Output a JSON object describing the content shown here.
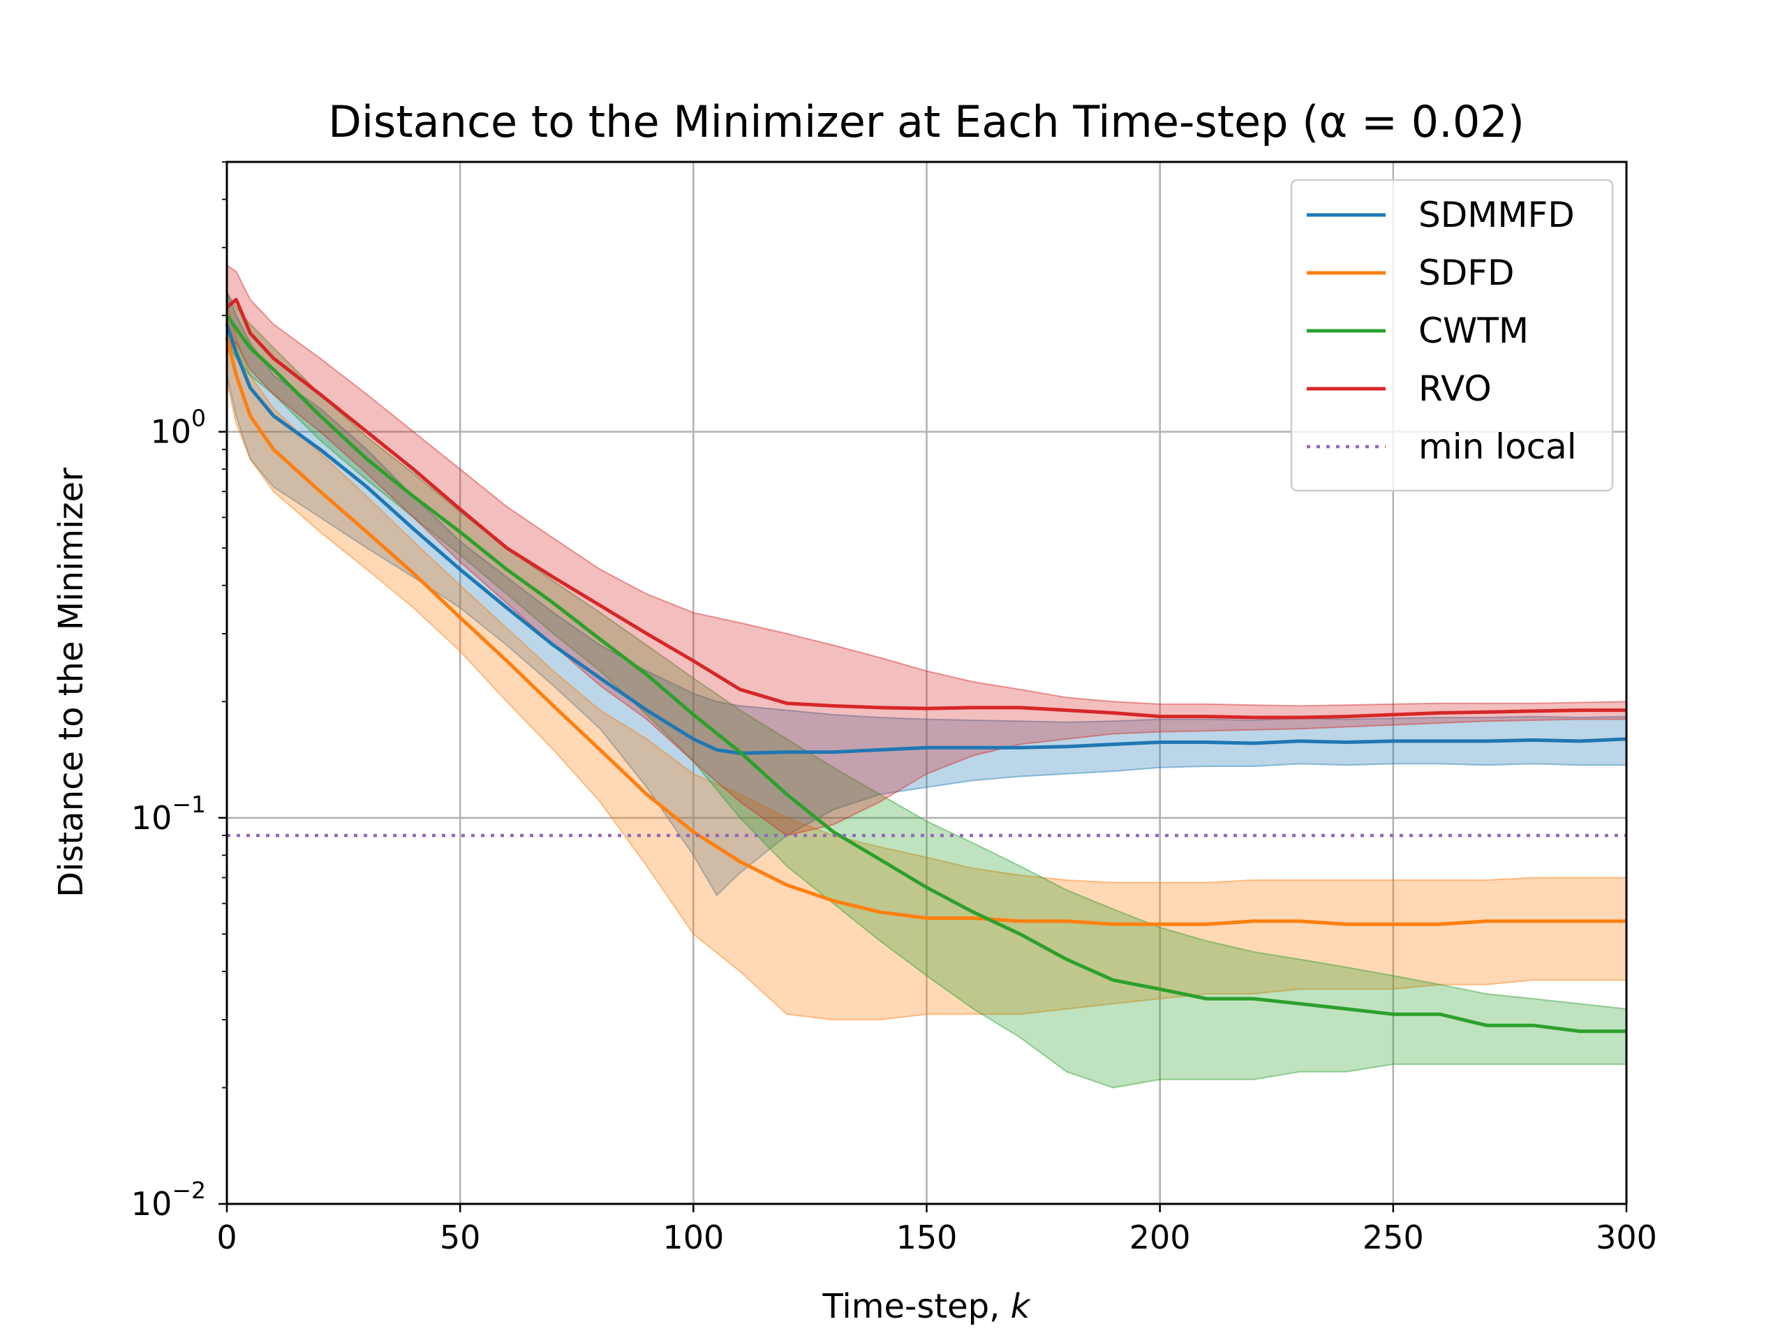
{
  "chart_data": {
    "type": "line",
    "title": "Distance to the Minimizer at Each Time-step (α = 0.02)",
    "xlabel": "Time-step, k",
    "ylabel": "Distance to the Minimizer",
    "xlim": [
      0,
      300
    ],
    "ylim": [
      0.01,
      5
    ],
    "yscale": "log",
    "grid": true,
    "legend_position": "top-right",
    "x_ticks": [
      0,
      50,
      100,
      150,
      200,
      250,
      300
    ],
    "x_tick_labels": [
      "0",
      "50",
      "100",
      "150",
      "200",
      "250",
      "300"
    ],
    "y_ticks": [
      {
        "value": 1,
        "base": "10",
        "exp": "0"
      },
      {
        "value": 0.1,
        "base": "10",
        "exp": "−1"
      },
      {
        "value": 0.01,
        "base": "10",
        "exp": "−2"
      }
    ],
    "series": [
      {
        "name": "SDMMFD",
        "color": "#1f77b4",
        "x": [
          0,
          2,
          5,
          10,
          20,
          30,
          40,
          50,
          60,
          70,
          80,
          90,
          100,
          105,
          110,
          120,
          130,
          140,
          150,
          160,
          170,
          180,
          190,
          200,
          210,
          220,
          230,
          240,
          250,
          260,
          270,
          280,
          290,
          300
        ],
        "y": [
          1.9,
          1.6,
          1.3,
          1.1,
          0.9,
          0.72,
          0.56,
          0.44,
          0.35,
          0.28,
          0.23,
          0.19,
          0.16,
          0.15,
          0.147,
          0.148,
          0.148,
          0.15,
          0.152,
          0.152,
          0.152,
          0.153,
          0.155,
          0.157,
          0.157,
          0.156,
          0.158,
          0.157,
          0.158,
          0.158,
          0.158,
          0.159,
          0.158,
          0.16
        ],
        "lower": [
          1.4,
          1.1,
          0.85,
          0.72,
          0.6,
          0.5,
          0.42,
          0.35,
          0.28,
          0.22,
          0.17,
          0.12,
          0.08,
          0.063,
          0.072,
          0.09,
          0.105,
          0.115,
          0.12,
          0.125,
          0.128,
          0.13,
          0.132,
          0.135,
          0.136,
          0.136,
          0.138,
          0.137,
          0.138,
          0.138,
          0.137,
          0.138,
          0.137,
          0.137
        ],
        "upper": [
          2.3,
          2.0,
          1.7,
          1.4,
          1.15,
          0.9,
          0.68,
          0.52,
          0.42,
          0.34,
          0.28,
          0.24,
          0.21,
          0.2,
          0.195,
          0.19,
          0.185,
          0.182,
          0.18,
          0.179,
          0.178,
          0.177,
          0.178,
          0.18,
          0.18,
          0.179,
          0.181,
          0.18,
          0.181,
          0.182,
          0.182,
          0.183,
          0.182,
          0.183
        ]
      },
      {
        "name": "SDFD",
        "color": "#ff7f0e",
        "x": [
          0,
          2,
          5,
          10,
          20,
          30,
          40,
          50,
          60,
          70,
          80,
          90,
          100,
          110,
          120,
          130,
          140,
          150,
          160,
          170,
          180,
          190,
          200,
          210,
          220,
          230,
          240,
          250,
          260,
          270,
          280,
          290,
          300
        ],
        "y": [
          1.75,
          1.4,
          1.1,
          0.9,
          0.7,
          0.55,
          0.43,
          0.33,
          0.255,
          0.195,
          0.15,
          0.115,
          0.092,
          0.077,
          0.067,
          0.061,
          0.057,
          0.055,
          0.055,
          0.054,
          0.054,
          0.053,
          0.053,
          0.053,
          0.054,
          0.054,
          0.053,
          0.053,
          0.053,
          0.054,
          0.054,
          0.054,
          0.054
        ],
        "lower": [
          1.35,
          1.05,
          0.85,
          0.7,
          0.55,
          0.44,
          0.35,
          0.27,
          0.2,
          0.15,
          0.11,
          0.075,
          0.05,
          0.04,
          0.031,
          0.03,
          0.03,
          0.031,
          0.031,
          0.031,
          0.032,
          0.033,
          0.034,
          0.035,
          0.035,
          0.036,
          0.036,
          0.036,
          0.037,
          0.037,
          0.038,
          0.038,
          0.038
        ],
        "upper": [
          2.2,
          1.75,
          1.4,
          1.15,
          0.88,
          0.68,
          0.52,
          0.4,
          0.31,
          0.24,
          0.19,
          0.16,
          0.13,
          0.115,
          0.1,
          0.09,
          0.084,
          0.079,
          0.074,
          0.071,
          0.069,
          0.068,
          0.068,
          0.068,
          0.069,
          0.069,
          0.069,
          0.069,
          0.069,
          0.069,
          0.07,
          0.07,
          0.07
        ]
      },
      {
        "name": "CWTM",
        "color": "#2ca02c",
        "x": [
          0,
          2,
          5,
          10,
          20,
          30,
          40,
          50,
          60,
          70,
          80,
          90,
          100,
          110,
          120,
          130,
          140,
          150,
          160,
          170,
          180,
          190,
          200,
          210,
          220,
          230,
          240,
          250,
          260,
          270,
          280,
          290,
          300
        ],
        "y": [
          2.0,
          1.85,
          1.65,
          1.45,
          1.1,
          0.85,
          0.68,
          0.55,
          0.44,
          0.36,
          0.29,
          0.235,
          0.185,
          0.148,
          0.115,
          0.092,
          0.078,
          0.066,
          0.057,
          0.05,
          0.043,
          0.038,
          0.036,
          0.034,
          0.034,
          0.033,
          0.032,
          0.031,
          0.031,
          0.029,
          0.029,
          0.028,
          0.028
        ],
        "lower": [
          1.7,
          1.55,
          1.4,
          1.25,
          0.95,
          0.75,
          0.6,
          0.48,
          0.38,
          0.3,
          0.24,
          0.185,
          0.14,
          0.1,
          0.075,
          0.06,
          0.048,
          0.039,
          0.032,
          0.027,
          0.022,
          0.02,
          0.021,
          0.021,
          0.021,
          0.022,
          0.022,
          0.023,
          0.023,
          0.023,
          0.023,
          0.023,
          0.023
        ],
        "upper": [
          2.3,
          2.1,
          1.9,
          1.65,
          1.25,
          0.97,
          0.78,
          0.62,
          0.5,
          0.41,
          0.34,
          0.28,
          0.23,
          0.19,
          0.16,
          0.135,
          0.115,
          0.098,
          0.086,
          0.075,
          0.065,
          0.058,
          0.052,
          0.048,
          0.045,
          0.043,
          0.041,
          0.039,
          0.037,
          0.035,
          0.034,
          0.033,
          0.032
        ]
      },
      {
        "name": "RVO",
        "color": "#d62728",
        "x": [
          0,
          2,
          5,
          10,
          20,
          30,
          40,
          50,
          60,
          70,
          80,
          90,
          100,
          110,
          120,
          130,
          140,
          150,
          160,
          170,
          180,
          190,
          200,
          210,
          220,
          230,
          240,
          250,
          260,
          270,
          280,
          290,
          300
        ],
        "y": [
          2.1,
          2.2,
          1.8,
          1.55,
          1.25,
          1.0,
          0.8,
          0.63,
          0.5,
          0.42,
          0.355,
          0.3,
          0.255,
          0.215,
          0.198,
          0.195,
          0.193,
          0.192,
          0.193,
          0.193,
          0.19,
          0.187,
          0.183,
          0.183,
          0.182,
          0.182,
          0.183,
          0.185,
          0.187,
          0.188,
          0.189,
          0.19,
          0.19
        ],
        "lower": [
          1.6,
          1.7,
          1.45,
          1.25,
          1.0,
          0.78,
          0.6,
          0.46,
          0.36,
          0.28,
          0.22,
          0.18,
          0.14,
          0.11,
          0.09,
          0.096,
          0.11,
          0.13,
          0.145,
          0.155,
          0.16,
          0.165,
          0.167,
          0.168,
          0.169,
          0.17,
          0.172,
          0.174,
          0.176,
          0.178,
          0.179,
          0.18,
          0.18
        ],
        "upper": [
          2.7,
          2.6,
          2.2,
          1.9,
          1.55,
          1.25,
          1.0,
          0.8,
          0.64,
          0.53,
          0.44,
          0.38,
          0.34,
          0.32,
          0.3,
          0.28,
          0.26,
          0.24,
          0.225,
          0.215,
          0.205,
          0.2,
          0.197,
          0.197,
          0.196,
          0.195,
          0.196,
          0.197,
          0.198,
          0.198,
          0.198,
          0.199,
          0.2
        ]
      },
      {
        "name": "min local",
        "color": "#9467bd",
        "style": "dotted",
        "x": [
          0,
          300
        ],
        "y": [
          0.09,
          0.09
        ]
      }
    ]
  }
}
